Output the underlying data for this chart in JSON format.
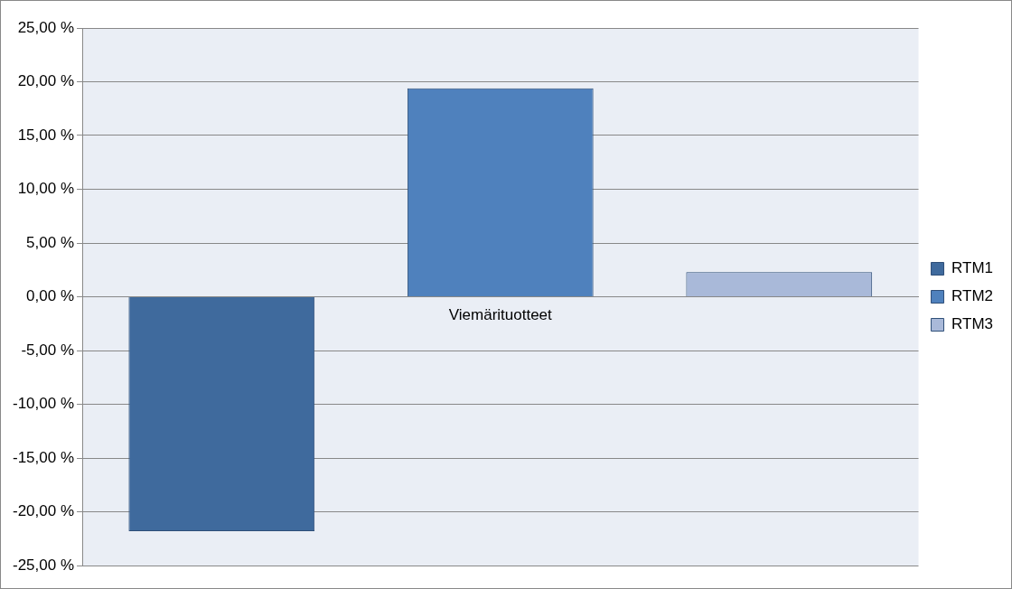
{
  "chart_data": {
    "type": "bar",
    "categories": [
      "Viemärituotteet"
    ],
    "series": [
      {
        "name": "RTM1",
        "color": "#3f6a9d",
        "values": [
          -21.8
        ]
      },
      {
        "name": "RTM2",
        "color": "#4f81bd",
        "values": [
          19.4
        ]
      },
      {
        "name": "RTM3",
        "color": "#a9b9d9",
        "values": [
          2.3
        ]
      }
    ],
    "ylim": [
      -25,
      25
    ],
    "yticks": [
      {
        "value": -25,
        "label": "-25,00 %"
      },
      {
        "value": -20,
        "label": "-20,00 %"
      },
      {
        "value": -15,
        "label": "-15,00 %"
      },
      {
        "value": -10,
        "label": "-10,00 %"
      },
      {
        "value": -5,
        "label": "-5,00 %"
      },
      {
        "value": 0,
        "label": "0,00 %"
      },
      {
        "value": 5,
        "label": "5,00 %"
      },
      {
        "value": 10,
        "label": "10,00 %"
      },
      {
        "value": 15,
        "label": "15,00 %"
      },
      {
        "value": 20,
        "label": "20,00 %"
      },
      {
        "value": 25,
        "label": "25,00 %"
      }
    ],
    "grid": "y",
    "legend": "right"
  }
}
